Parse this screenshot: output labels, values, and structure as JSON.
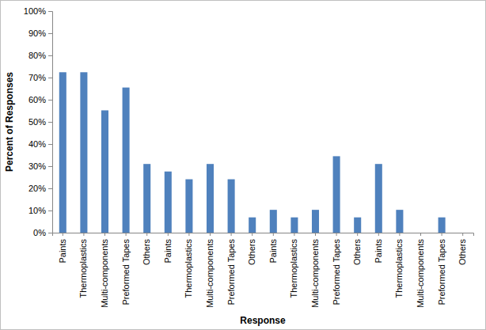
{
  "chart_data": {
    "type": "bar",
    "x_label": "Response",
    "y_label": "Percent of Responses",
    "categories": [
      "Paints",
      "Thermoplastics",
      "Multi-components",
      "Preformed Tapes",
      "Others",
      "Paints",
      "Thermoplastics",
      "Multi-components",
      "Preformed Tapes",
      "Others",
      "Paints",
      "Thermoplastics",
      "Multi-components",
      "Preformed Tapes",
      "Others",
      "Paints",
      "Thermoplastics",
      "Multi-components",
      "Preformed Tapes",
      "Others"
    ],
    "values": [
      72.4,
      72.4,
      55.2,
      65.5,
      31.0,
      27.6,
      24.1,
      31.0,
      24.1,
      6.9,
      10.3,
      6.9,
      10.3,
      34.5,
      6.9,
      31.0,
      10.3,
      0,
      6.9,
      0
    ],
    "color": "#4f81bd",
    "ylim": [
      0,
      100
    ],
    "yticks": [
      {
        "value": 0,
        "label": "0%"
      },
      {
        "value": 10,
        "label": "10%"
      },
      {
        "value": 20,
        "label": "20%"
      },
      {
        "value": 30,
        "label": "30%"
      },
      {
        "value": 40,
        "label": "40%"
      },
      {
        "value": 50,
        "label": "50%"
      },
      {
        "value": 60,
        "label": "60%"
      },
      {
        "value": 70,
        "label": "70%"
      },
      {
        "value": 80,
        "label": "80%"
      },
      {
        "value": 90,
        "label": "90%"
      },
      {
        "value": 100,
        "label": "100%"
      }
    ],
    "grid": false
  }
}
